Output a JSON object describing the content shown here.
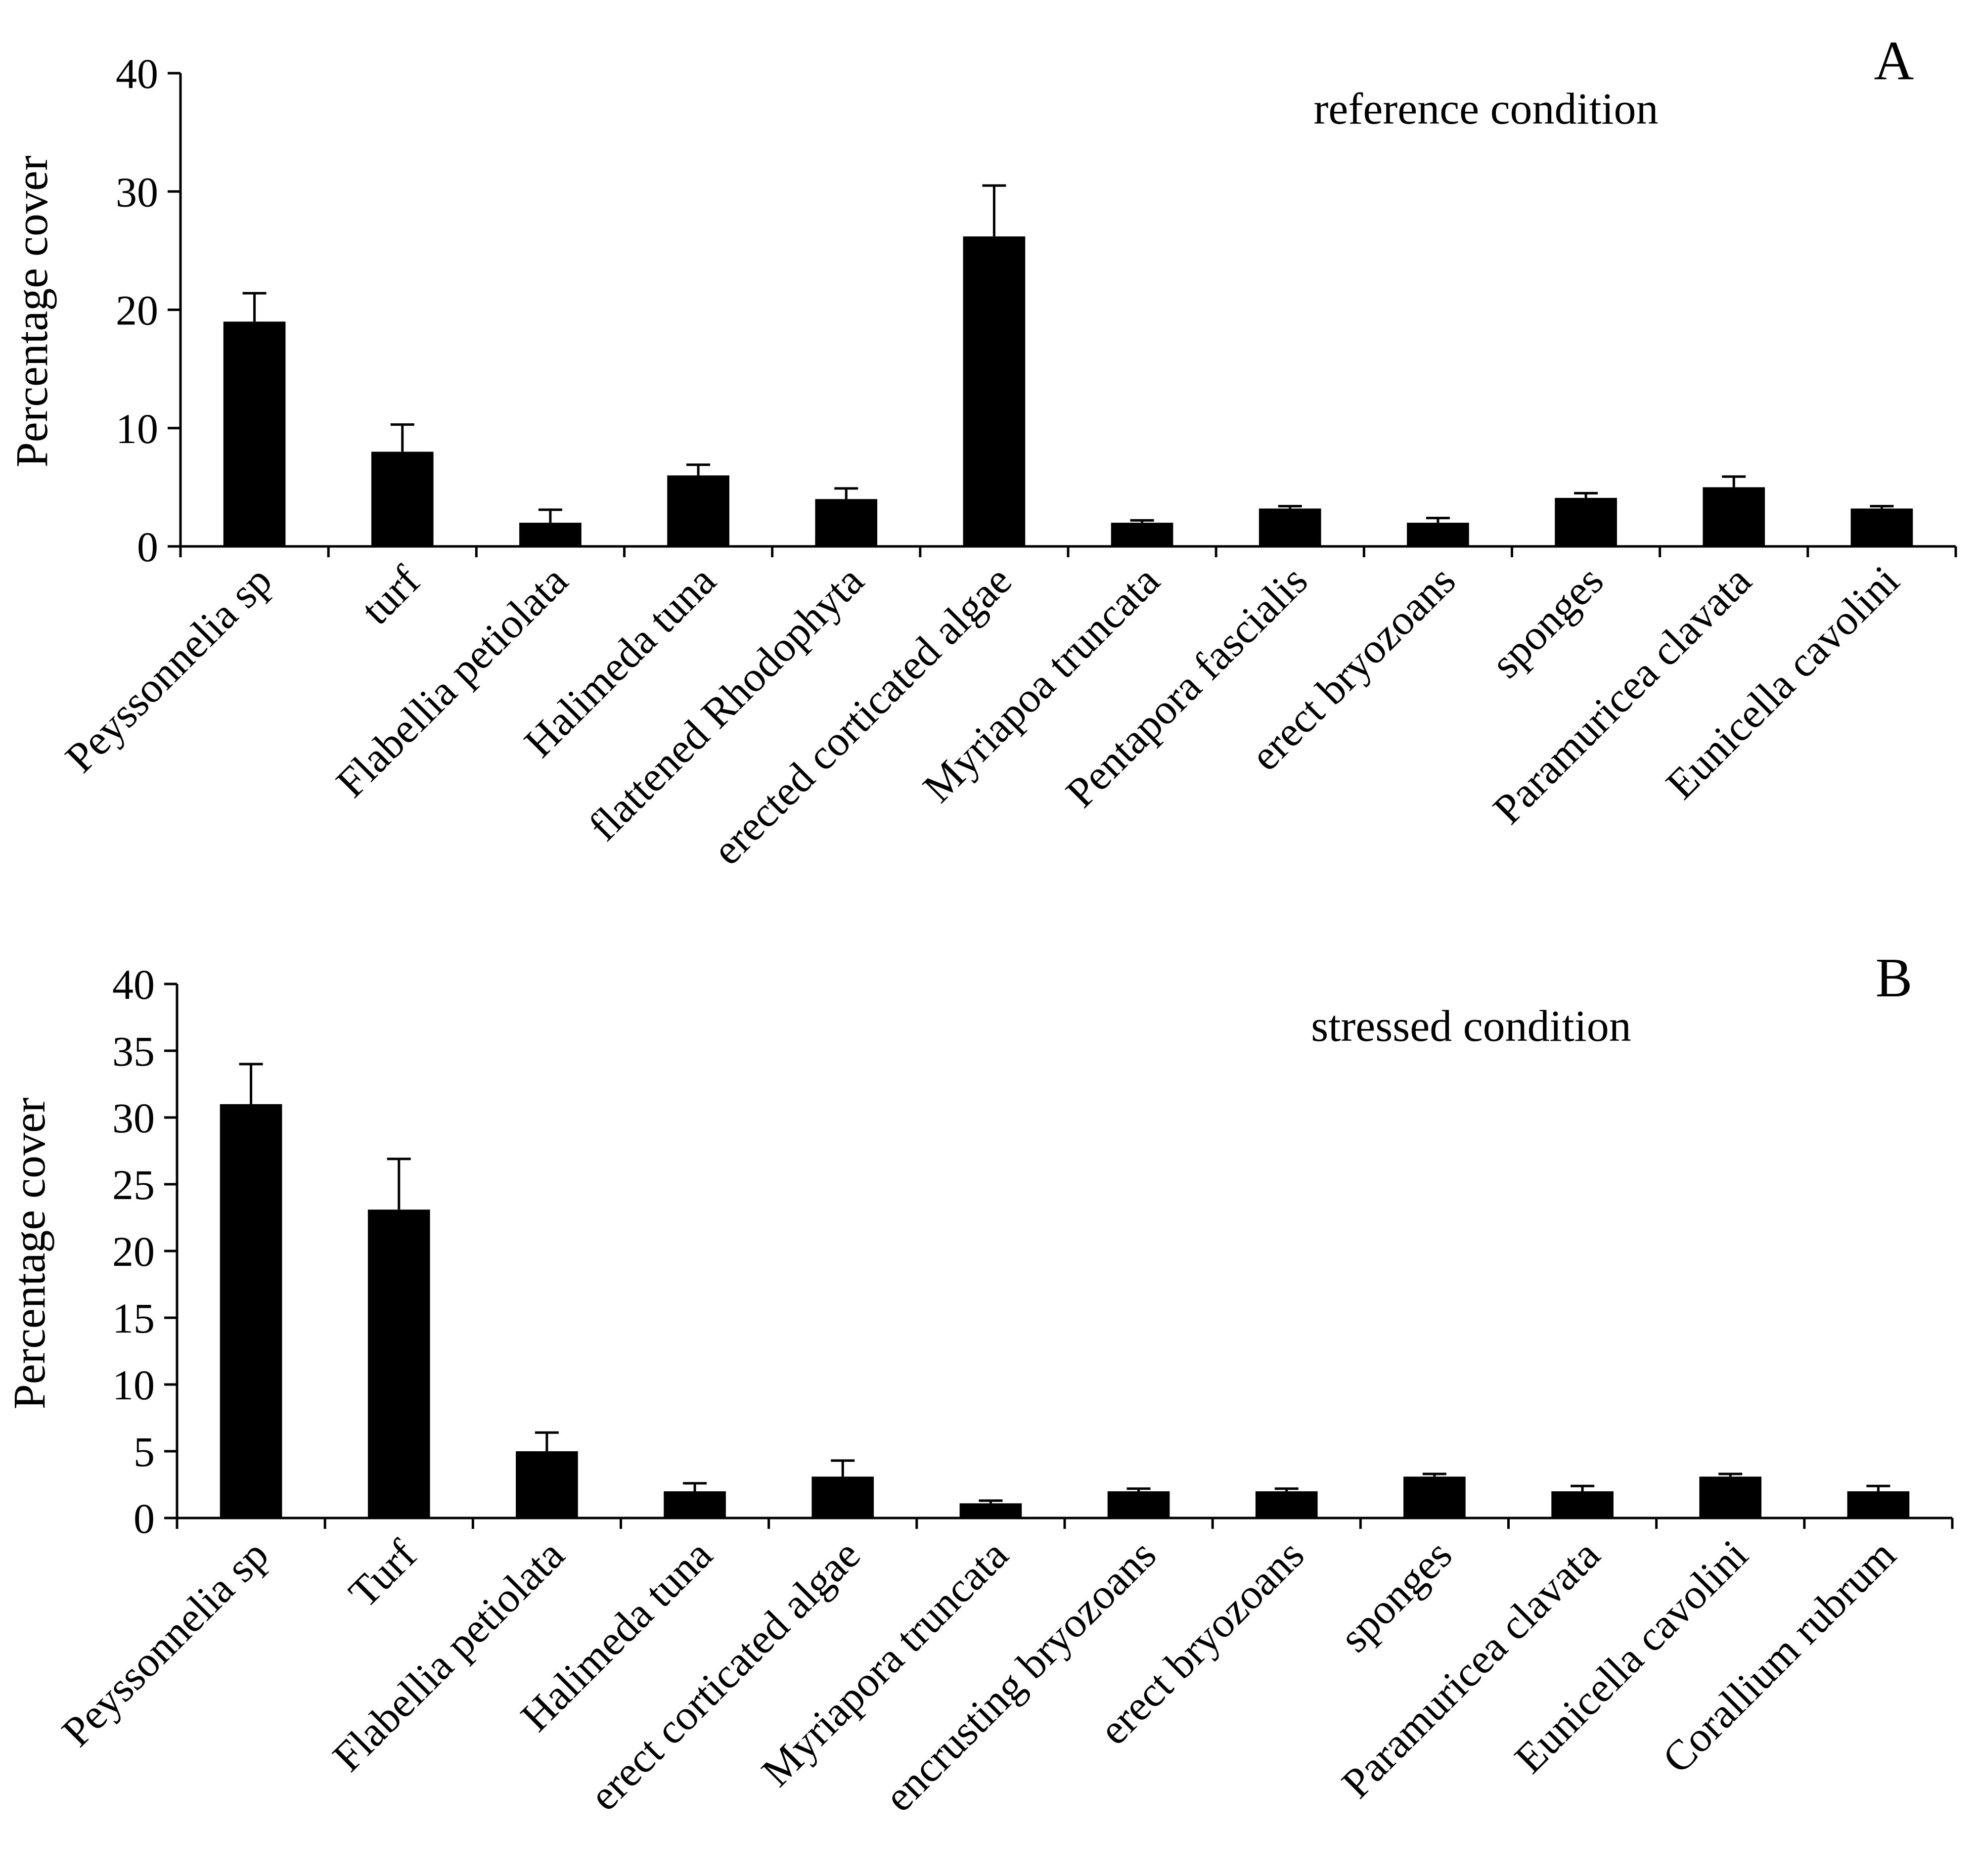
{
  "chart_data": [
    {
      "type": "bar",
      "panel_label": "A",
      "title": "reference condition",
      "xlabel": "",
      "ylabel": "Percentage cover",
      "ylim": [
        0,
        40
      ],
      "yticks": [
        0,
        10,
        20,
        30,
        40
      ],
      "grid": false,
      "categories": [
        "Peyssonnelia sp",
        "turf",
        "Flabellia petiolata",
        "Halimeda tuna",
        "flattened Rhodophyta",
        "erected corticated algae",
        "Myriapoa truncata",
        "Pentapora fascialis",
        "erect bryozoans",
        "sponges",
        "Paramuricea clavata",
        "Eunicella cavolini"
      ],
      "values": [
        19,
        8,
        2,
        6,
        4,
        26.2,
        2,
        3.2,
        2,
        4.1,
        5,
        3.2
      ],
      "errors": [
        2.4,
        2.3,
        1.1,
        0.9,
        0.9,
        4.3,
        0.2,
        0.2,
        0.4,
        0.4,
        0.9,
        0.2
      ],
      "colors": {
        "bar": "#000000"
      }
    },
    {
      "type": "bar",
      "panel_label": "B",
      "title": "stressed condition",
      "xlabel": "",
      "ylabel": "Percentage cover",
      "ylim": [
        0,
        40
      ],
      "yticks": [
        0,
        5,
        10,
        15,
        20,
        25,
        30,
        35,
        40
      ],
      "grid": false,
      "categories": [
        "Peyssonnelia sp",
        "Turf",
        "Flabellia petiolata",
        "Halimeda tuna",
        "erect corticated algae",
        "Myriapora truncata",
        "encrusting bryozoans",
        "erect bryozoans",
        "sponges",
        "Paramuricea clavata",
        "Eunicella cavolini",
        "Corallium rubrum"
      ],
      "values": [
        31,
        23.1,
        5,
        2,
        3.1,
        1.1,
        2,
        2,
        3.1,
        2,
        3.1,
        2
      ],
      "errors": [
        3,
        3.8,
        1.4,
        0.6,
        1.2,
        0.2,
        0.2,
        0.2,
        0.2,
        0.4,
        0.2,
        0.4
      ],
      "colors": {
        "bar": "#000000"
      }
    }
  ]
}
